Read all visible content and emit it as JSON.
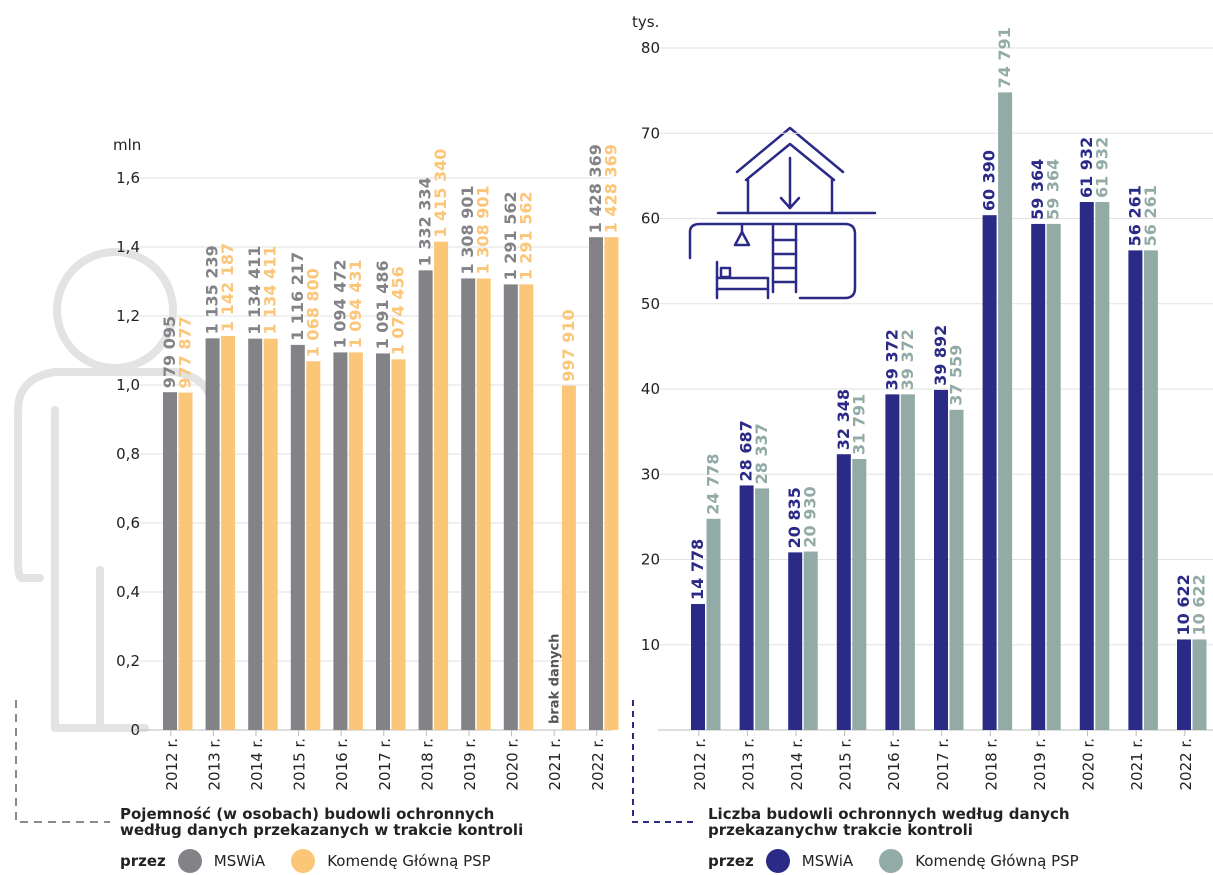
{
  "colors": {
    "left_mswia": "#828287",
    "left_psp": "#fbc677",
    "right_mswia": "#2b2a86",
    "right_psp": "#92aba6",
    "axis_text": "#222222",
    "grid": "#e2e2e2",
    "no_data_text": "#555555"
  },
  "chart_data": [
    {
      "type": "bar",
      "unit": "mln",
      "categories": [
        "2012 r.",
        "2013 r.",
        "2014 r.",
        "2015 r.",
        "2016 r.",
        "2017 r.",
        "2018 r.",
        "2019 r.",
        "2020 r.",
        "2021 r.",
        "2022 r."
      ],
      "ylim": [
        0,
        1.6
      ],
      "yticks": [
        "0",
        "0,2",
        "0,4",
        "0,6",
        "0,8",
        "1,0",
        "1,2",
        "1,4",
        "1,6"
      ],
      "grid": true,
      "legend_position": "bottom-left",
      "series": [
        {
          "name": "MSWiA",
          "values": [
            979095,
            1135239,
            1134411,
            1116217,
            1094472,
            1091486,
            1332334,
            1308901,
            1291562,
            null,
            1428369
          ],
          "labels": [
            "979 095",
            "1 135 239",
            "1 134 411",
            "1 116 217",
            "1 094 472",
            "1 091 486",
            "1 332 334",
            "1 308 901",
            "1 291 562",
            "brak danych",
            "1 428 369"
          ]
        },
        {
          "name": "Komendę Główną PSP",
          "values": [
            977877,
            1142187,
            1134411,
            1068800,
            1094431,
            1074456,
            1415340,
            1308901,
            1291562,
            997910,
            1428369
          ],
          "labels": [
            "977 877",
            "1 142 187",
            "1 134 411",
            "1 068 800",
            "1 094 431",
            "1 074 456",
            "1 415 340",
            "1 308 901",
            "1 291 562",
            "997 910",
            "1 428 369"
          ]
        }
      ],
      "caption_lines": [
        "Pojemność (w osobach) budowli ochronnych",
        "według danych przekazanych w trakcie kontroli"
      ],
      "legend_lead": "przez"
    },
    {
      "type": "bar",
      "unit": "tys.",
      "categories": [
        "2012 r.",
        "2013 r.",
        "2014 r.",
        "2015 r.",
        "2016 r.",
        "2017 r.",
        "2018 r.",
        "2019 r.",
        "2020 r.",
        "2021 r.",
        "2022 r."
      ],
      "ylim": [
        0,
        80
      ],
      "yticks": [
        "10",
        "20",
        "30",
        "40",
        "50",
        "60",
        "70",
        "80"
      ],
      "grid": true,
      "legend_position": "bottom-left",
      "series": [
        {
          "name": "MSWiA",
          "values": [
            14778,
            28687,
            20835,
            32348,
            39372,
            39892,
            60390,
            59364,
            61932,
            56261,
            10622
          ],
          "labels": [
            "14 778",
            "28 687",
            "20 835",
            "32 348",
            "39 372",
            "39 892",
            "60 390",
            "59 364",
            "61 932",
            "56 261",
            "10 622"
          ]
        },
        {
          "name": "Komendę Główną PSP",
          "values": [
            24778,
            28337,
            20930,
            31791,
            39372,
            37559,
            74791,
            59364,
            61932,
            56261,
            10622
          ],
          "labels": [
            "24 778",
            "28 337",
            "20 930",
            "31 791",
            "39 372",
            "37 559",
            "74 791",
            "59 364",
            "61 932",
            "56 261",
            "10 622"
          ]
        }
      ],
      "caption_lines": [
        "Liczba budowli ochronnych według danych",
        "przekazanychw trakcie kontroli"
      ],
      "legend_lead": "przez"
    }
  ]
}
